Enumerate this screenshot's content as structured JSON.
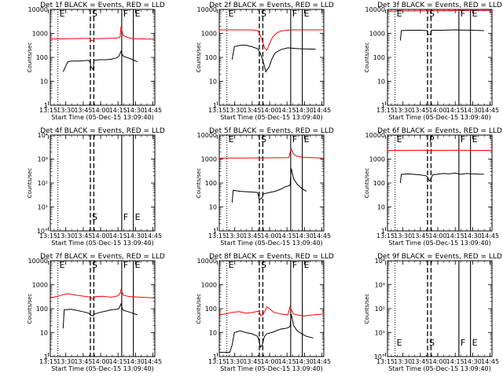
{
  "chart_data": {
    "type": "line",
    "ylabel": "Counts/sec",
    "xlabel": "Start Time (05-Dec-15 13:09:40)",
    "xticks": [
      "13:15",
      "13:30",
      "13:45",
      "14:00",
      "14:15",
      "14:30",
      "14:45"
    ],
    "xlim_min": [
      7,
      97
    ],
    "y_scale": "log",
    "ylim": [
      1,
      10000
    ],
    "yticks": [
      "1",
      "10",
      "100",
      "1000",
      "10000"
    ],
    "yticks_sci": [
      "10°",
      "10¹",
      "10²",
      "10³",
      "10⁴"
    ],
    "markers": [
      {
        "time": 13.5,
        "style": "dotted",
        "label": "E"
      },
      {
        "time": 41.5,
        "style": "dashed",
        "label": "S"
      },
      {
        "time": 44.5,
        "style": "dashed",
        "label": ""
      },
      {
        "time": 68.5,
        "style": "solid",
        "label": "F"
      },
      {
        "time": 78.5,
        "style": "solid",
        "label": "E"
      }
    ],
    "panels": [
      {
        "title": "Det 1f BLACK = Events, RED = LLD",
        "yaxis_style": "plain",
        "labels": [
          "E",
          "S",
          "",
          "F",
          "E"
        ],
        "series": [
          {
            "name": "Events",
            "color": "#000000",
            "x": [
              18,
              22,
              25,
              30,
              35,
              40,
              41.5,
              42,
              44,
              44.5,
              45,
              50,
              55,
              60,
              64,
              66,
              68,
              69,
              70,
              74,
              78,
              82
            ],
            "y": [
              25,
              65,
              70,
              70,
              72,
              75,
              60,
              40,
              30,
              70,
              75,
              80,
              80,
              85,
              95,
              110,
              180,
              130,
              110,
              95,
              80,
              65
            ]
          },
          {
            "name": "LLD",
            "color": "#ff0000",
            "x": [
              7,
              15,
              25,
              35,
              41,
              42,
              44,
              45,
              55,
              65,
              67,
              68,
              69,
              70,
              73,
              76,
              80,
              90,
              97
            ],
            "y": [
              580,
              590,
              600,
              610,
              620,
              500,
              520,
              600,
              610,
              640,
              700,
              2000,
              1100,
              800,
              700,
              620,
              600,
              580,
              570
            ]
          }
        ]
      },
      {
        "title": "Det 2f BLACK = Events, RED = LLD",
        "yaxis_style": "plain",
        "labels": [
          "E",
          "S",
          "",
          "F",
          "E"
        ],
        "series": [
          {
            "name": "Events",
            "color": "#000000",
            "x": [
              18,
              20,
              25,
              30,
              35,
              40,
              42,
              44,
              45,
              47,
              50,
              52,
              55,
              60,
              66,
              70,
              75,
              80,
              90
            ],
            "y": [
              80,
              280,
              320,
              320,
              280,
              230,
              160,
              90,
              60,
              25,
              40,
              80,
              150,
              210,
              250,
              240,
              230,
              225,
              220
            ]
          },
          {
            "name": "LLD",
            "color": "#ff0000",
            "x": [
              7,
              15,
              25,
              35,
              40,
              42,
              44,
              46,
              48,
              50,
              53,
              56,
              60,
              65,
              70,
              80,
              97
            ],
            "y": [
              1400,
              1400,
              1400,
              1400,
              1300,
              900,
              500,
              250,
              200,
              350,
              700,
              1000,
              1250,
              1350,
              1400,
              1400,
              1400
            ]
          }
        ]
      },
      {
        "title": "Det 3f BLACK = Events, RED = LLD",
        "yaxis_style": "plain",
        "labels": [
          "E",
          "S",
          "",
          "F",
          "E"
        ],
        "series": [
          {
            "name": "Events",
            "color": "#000000",
            "x": [
              18,
              19,
              25,
              35,
              41,
              42,
              44,
              45,
              55,
              65,
              70,
              80,
              90
            ],
            "y": [
              500,
              1300,
              1350,
              1350,
              1300,
              900,
              900,
              1350,
              1350,
              1400,
              1380,
              1350,
              1300
            ]
          },
          {
            "name": "LLD",
            "color": "#ff0000",
            "x": [
              7,
              20,
              35,
              50,
              65,
              70,
              80,
              97
            ],
            "y": [
              8500,
              8600,
              8700,
              8800,
              8900,
              9000,
              9000,
              9100
            ]
          }
        ]
      },
      {
        "title": "Det 4f BLACK = Events, RED = LLD",
        "yaxis_style": "sci",
        "labels": [
          "",
          "S",
          "",
          "F",
          "E"
        ],
        "series": []
      },
      {
        "title": "Det 5f BLACK = Events, RED = LLD",
        "yaxis_style": "plain",
        "labels": [
          "E",
          "S",
          "",
          "F",
          "E"
        ],
        "series": [
          {
            "name": "Events",
            "color": "#000000",
            "x": [
              18,
              19,
              25,
              35,
              40,
              41.5,
              44,
              45,
              50,
              55,
              60,
              64,
              68,
              69,
              71,
              74,
              78,
              82
            ],
            "y": [
              15,
              50,
              45,
              42,
              40,
              20,
              25,
              35,
              40,
              45,
              55,
              70,
              80,
              400,
              150,
              90,
              60,
              45
            ]
          },
          {
            "name": "LLD",
            "color": "#ff0000",
            "x": [
              7,
              20,
              35,
              50,
              60,
              67,
              68,
              69,
              71,
              74,
              78,
              85,
              97
            ],
            "y": [
              1100,
              1100,
              1110,
              1120,
              1130,
              1150,
              1900,
              2600,
              1600,
              1300,
              1200,
              1150,
              1100
            ]
          }
        ]
      },
      {
        "title": "Det 6f BLACK = Events, RED = LLD",
        "yaxis_style": "plain",
        "labels": [
          "E",
          "P",
          "",
          "F",
          "E"
        ],
        "series": [
          {
            "name": "Events",
            "color": "#000000",
            "x": [
              18,
              19,
              25,
              35,
              40,
              41.5,
              43,
              44.5,
              46,
              55,
              60,
              65,
              70,
              75,
              80,
              90
            ],
            "y": [
              100,
              230,
              240,
              220,
              200,
              180,
              120,
              150,
              220,
              250,
              240,
              260,
              230,
              250,
              240,
              230
            ]
          },
          {
            "name": "LLD",
            "color": "#ff0000",
            "x": [
              7,
              20,
              35,
              50,
              65,
              80,
              97
            ],
            "y": [
              2300,
              2300,
              2350,
              2300,
              2350,
              2300,
              2300
            ]
          }
        ]
      },
      {
        "title": "Det 7f BLACK = Events, RED = LLD",
        "yaxis_style": "plain",
        "labels": [
          "E",
          "S",
          "",
          "F",
          "E"
        ],
        "series": [
          {
            "name": "Events",
            "color": "#000000",
            "x": [
              18,
              19,
              25,
              35,
              40,
              41.5,
              44,
              45,
              50,
              55,
              60,
              64,
              66,
              68,
              69,
              70,
              74,
              78,
              82
            ],
            "y": [
              15,
              90,
              95,
              75,
              65,
              55,
              50,
              60,
              70,
              80,
              90,
              95,
              100,
              160,
              100,
              85,
              75,
              65,
              55
            ]
          },
          {
            "name": "LLD",
            "color": "#ff0000",
            "x": [
              7,
              12,
              18,
              22,
              30,
              38,
              41.5,
              44,
              46,
              52,
              60,
              65,
              67,
              68,
              70,
              75,
              85,
              97
            ],
            "y": [
              280,
              320,
              380,
              420,
              360,
              320,
              300,
              250,
              320,
              330,
              300,
              340,
              420,
              620,
              360,
              320,
              300,
              280
            ]
          }
        ]
      },
      {
        "title": "Det 8f BLACK = Events, RED = LLD",
        "yaxis_style": "plain",
        "labels": [
          "E",
          "S",
          "",
          "F",
          "E"
        ],
        "series": [
          {
            "name": "Events",
            "color": "#000000",
            "x": [
              7,
              12,
              16,
              18,
              20,
              25,
              30,
              35,
              40,
              41.5,
              42.5,
              44,
              45,
              46,
              48,
              52,
              56,
              60,
              64,
              66,
              68,
              69,
              71,
              74,
              78,
              82,
              88
            ],
            "y": [
              1.5,
              1.5,
              1.5,
              3,
              10,
              12,
              10,
              9,
              7,
              4,
              2.5,
              3,
              5,
              7,
              9,
              10,
              12,
              14,
              15,
              16,
              18,
              60,
              20,
              12,
              9,
              7,
              6
            ]
          },
          {
            "name": "LLD",
            "color": "#ff0000",
            "x": [
              7,
              12,
              18,
              24,
              30,
              36,
              41,
              43,
              45,
              48,
              54,
              60,
              66,
              68,
              69,
              71,
              74,
              80,
              88,
              97
            ],
            "y": [
              55,
              60,
              70,
              75,
              65,
              70,
              80,
              50,
              60,
              120,
              70,
              60,
              55,
              120,
              90,
              60,
              55,
              50,
              55,
              60
            ]
          }
        ]
      },
      {
        "title": "Det 9f BLACK = Events, RED = LLD",
        "yaxis_style": "sci",
        "labels": [
          "E",
          "S",
          "",
          "F",
          "E"
        ],
        "series": []
      }
    ]
  }
}
